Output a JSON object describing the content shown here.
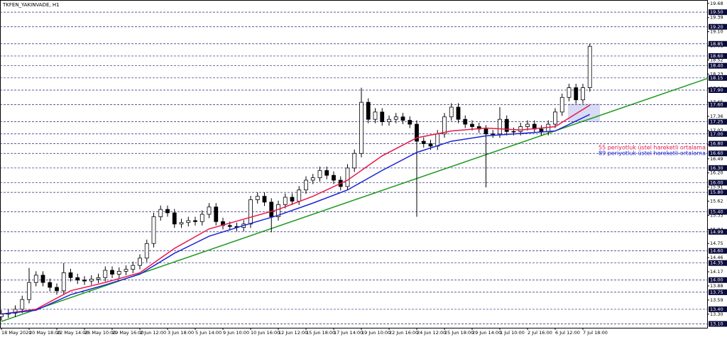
{
  "chart_data": {
    "type": "candlestick",
    "title": "TKFEN_YAKINVADE, H1",
    "color": "#000000",
    "categories": [
      "18 May 2020",
      null,
      null,
      null,
      "20 May 18:00",
      null,
      null,
      null,
      "22 May 14:00",
      null,
      null,
      null,
      "26 May 10:00",
      null,
      null,
      null,
      "29 May 16:00",
      null,
      null,
      null,
      "2 Jun 12:00",
      null,
      null,
      null,
      "3 Jun 18:00",
      null,
      null,
      null,
      "5 Jun 14:00",
      null,
      null,
      null,
      "9 Jun 10:00",
      null,
      null,
      null,
      "10 Jun 16:00",
      null,
      null,
      null,
      "12 Jun 12:00",
      null,
      null,
      null,
      "15 Jun 18:00",
      null,
      null,
      null,
      "17 Jun 14:00",
      null,
      null,
      null,
      "19 Jun 10:00",
      null,
      null,
      null,
      "22 Jun 16:00",
      null,
      null,
      null,
      "24 Jun 12:00",
      null,
      null,
      null,
      "25 Jun 18:00",
      null,
      null,
      null,
      "29 Jun 14:00",
      null,
      null,
      null,
      "1 Jul 10:00",
      null,
      null,
      null,
      "2 Jul 16:00",
      null,
      null,
      null,
      "6 Jul 12:00",
      null,
      null,
      null,
      "7 Jul 18:00",
      null
    ],
    "open": [
      13.25,
      13.3,
      13.32,
      13.4,
      13.6,
      13.95,
      14.1,
      13.95,
      13.85,
      13.78,
      14.15,
      14.05,
      14.0,
      13.98,
      14.02,
      14.05,
      14.2,
      14.12,
      14.18,
      14.22,
      14.3,
      14.45,
      14.75,
      15.3,
      15.45,
      15.38,
      15.15,
      15.18,
      15.22,
      15.2,
      15.35,
      15.5,
      15.2,
      15.12,
      15.1,
      15.08,
      15.15,
      15.65,
      15.72,
      15.6,
      15.3,
      15.55,
      15.7,
      15.62,
      15.85,
      16.05,
      16.1,
      16.25,
      16.15,
      16.05,
      15.92,
      16.3,
      16.6,
      17.65,
      17.3,
      17.45,
      17.25,
      17.3,
      17.35,
      17.28,
      17.2,
      16.85,
      16.8,
      16.75,
      17.0,
      17.35,
      17.55,
      17.3,
      17.2,
      17.15,
      17.1,
      17.0,
      17.0,
      17.3,
      17.05,
      17.05,
      17.15,
      17.2,
      17.1,
      17.05,
      17.2,
      17.45,
      17.75,
      17.95,
      17.7,
      17.95
    ],
    "high": [
      13.38,
      13.4,
      13.48,
      13.68,
      14.25,
      14.18,
      14.18,
      14.03,
      13.93,
      14.35,
      14.23,
      14.13,
      14.08,
      14.1,
      14.13,
      14.28,
      14.28,
      14.26,
      14.3,
      14.38,
      14.53,
      14.83,
      15.38,
      15.53,
      15.53,
      15.46,
      15.26,
      15.3,
      15.3,
      15.43,
      15.58,
      15.58,
      15.28,
      15.2,
      15.18,
      15.23,
      15.73,
      15.8,
      15.8,
      15.68,
      15.63,
      15.78,
      15.78,
      15.93,
      16.13,
      16.18,
      16.33,
      16.33,
      16.23,
      16.13,
      16.38,
      16.68,
      17.95,
      17.73,
      17.53,
      17.53,
      17.38,
      17.43,
      17.43,
      17.36,
      17.28,
      16.93,
      16.88,
      17.08,
      17.43,
      17.63,
      17.63,
      17.38,
      17.28,
      17.23,
      17.18,
      17.08,
      17.55,
      17.38,
      17.13,
      17.23,
      17.28,
      17.28,
      17.18,
      17.28,
      17.53,
      17.83,
      18.03,
      18.03,
      18.03,
      18.85
    ],
    "low": [
      13.17,
      13.22,
      13.24,
      13.32,
      13.52,
      13.87,
      13.87,
      13.77,
      13.7,
      13.7,
      13.97,
      13.92,
      13.9,
      13.9,
      13.94,
      13.97,
      14.04,
      14.04,
      14.1,
      14.14,
      14.22,
      14.37,
      14.67,
      15.22,
      15.3,
      15.07,
      15.07,
      15.1,
      15.12,
      15.12,
      15.27,
      15.12,
      15.04,
      15.02,
      15.0,
      15.0,
      15.07,
      15.57,
      15.52,
      14.98,
      15.22,
      15.47,
      15.54,
      15.54,
      15.77,
      15.97,
      16.02,
      16.07,
      15.97,
      15.84,
      15.84,
      16.22,
      16.52,
      17.22,
      17.22,
      17.17,
      17.17,
      17.22,
      17.2,
      17.12,
      15.3,
      16.72,
      16.67,
      16.67,
      16.92,
      17.27,
      17.22,
      17.12,
      17.07,
      17.02,
      15.9,
      16.92,
      16.92,
      16.97,
      16.97,
      16.97,
      17.07,
      17.02,
      16.97,
      16.97,
      17.12,
      17.37,
      17.67,
      17.62,
      17.62,
      17.87
    ],
    "close": [
      13.3,
      13.32,
      13.4,
      13.6,
      13.95,
      14.1,
      13.95,
      13.85,
      13.78,
      14.15,
      14.05,
      14.0,
      13.98,
      14.02,
      14.05,
      14.2,
      14.12,
      14.18,
      14.22,
      14.3,
      14.45,
      14.75,
      15.3,
      15.45,
      15.38,
      15.15,
      15.18,
      15.22,
      15.2,
      15.35,
      15.5,
      15.2,
      15.12,
      15.1,
      15.08,
      15.15,
      15.65,
      15.72,
      15.6,
      15.3,
      15.55,
      15.7,
      15.62,
      15.85,
      16.05,
      16.1,
      16.25,
      16.15,
      16.05,
      15.92,
      16.3,
      16.6,
      17.65,
      17.3,
      17.45,
      17.25,
      17.3,
      17.35,
      17.28,
      17.2,
      16.85,
      16.8,
      16.75,
      17.0,
      17.35,
      17.55,
      17.3,
      17.2,
      17.15,
      17.1,
      17.0,
      17.0,
      17.3,
      17.05,
      17.05,
      17.15,
      17.2,
      17.1,
      17.05,
      17.2,
      17.45,
      17.75,
      17.95,
      17.7,
      17.95,
      18.8
    ],
    "series": [
      {
        "name": "55 periyotluk üstel hareketli ortalama",
        "color": "#e8174a",
        "x": [
          0,
          5,
          10,
          15,
          20,
          25,
          30,
          35,
          40,
          45,
          50,
          55,
          60,
          65,
          70,
          75,
          80,
          85
        ],
        "values": [
          13.3,
          13.4,
          13.78,
          13.95,
          14.15,
          14.65,
          15.05,
          15.25,
          15.45,
          15.72,
          16.05,
          16.55,
          16.92,
          17.06,
          17.12,
          17.08,
          17.15,
          17.59
        ]
      },
      {
        "name": "89 periyotluk üstel hareketli ortalama",
        "color": "#1a24d6",
        "x": [
          0,
          5,
          10,
          15,
          20,
          25,
          30,
          35,
          40,
          45,
          50,
          55,
          60,
          65,
          70,
          75,
          80,
          85
        ],
        "values": [
          13.3,
          13.38,
          13.7,
          13.9,
          14.12,
          14.55,
          14.9,
          15.12,
          15.33,
          15.58,
          15.85,
          16.25,
          16.62,
          16.85,
          16.96,
          17.01,
          17.06,
          17.4
        ]
      }
    ],
    "trendline": {
      "color": "#1f9a1f",
      "x": [
        0,
        102
      ],
      "values": [
        13.15,
        18.14
      ]
    },
    "ylim": [
      13.02,
      19.75
    ],
    "yticks": [
      19.68,
      19.39,
      {
        "value": 19.1,
        "label": "19.10"
      },
      18.81,
      18.52,
      18.23,
      17.94,
      17.65,
      17.36,
      17.07,
      16.78,
      16.49,
      {
        "value": 16.2,
        "label": "16.20"
      },
      15.91,
      15.62,
      15.33,
      15.04,
      14.75,
      14.46,
      14.17,
      13.88,
      13.59,
      {
        "value": 13.3,
        "label": "13.30"
      }
    ],
    "levels": [
      {
        "value": 19.5,
        "label": "19.50"
      },
      {
        "value": 19.2,
        "label": "19.20"
      },
      18.85,
      {
        "value": 18.6,
        "label": "18.60"
      },
      {
        "value": 18.4,
        "label": "18.40"
      },
      18.15,
      {
        "value": 17.9,
        "label": "17.90"
      },
      {
        "value": 17.6,
        "label": "17.60"
      },
      17.25,
      {
        "value": 17,
        "label": "17.00"
      },
      {
        "value": 16.8,
        "label": "16.80"
      },
      {
        "value": 16.6,
        "label": "16.60"
      },
      {
        "value": 16.3,
        "label": "16.30"
      },
      {
        "value": 16,
        "label": "16.00"
      },
      {
        "value": 15.8,
        "label": "15.80"
      },
      {
        "value": 15.4,
        "label": "15.40"
      },
      14.99,
      {
        "value": 14.6,
        "label": "14.60"
      },
      14.35,
      {
        "value": 14,
        "label": "14.00"
      },
      13.75,
      {
        "value": 13.4,
        "label": "13.40"
      },
      {
        "value": 13.1,
        "label": "13.10"
      }
    ]
  }
}
